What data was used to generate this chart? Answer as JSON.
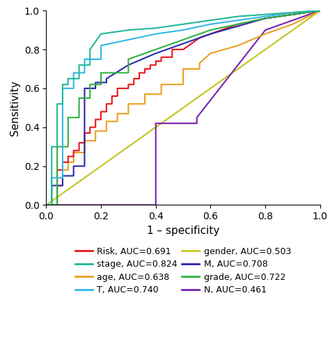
{
  "title": "",
  "xlabel": "1 – specificity",
  "ylabel": "Sensitivity",
  "xlim": [
    0.0,
    1.0
  ],
  "ylim": [
    0.0,
    1.0
  ],
  "diagonal_color": "#555555",
  "curves": {
    "Risk": {
      "color": "#e8151a",
      "auc": 0.691,
      "fpr": [
        0.0,
        0.04,
        0.04,
        0.06,
        0.06,
        0.08,
        0.08,
        0.1,
        0.1,
        0.12,
        0.12,
        0.14,
        0.14,
        0.16,
        0.16,
        0.18,
        0.18,
        0.2,
        0.2,
        0.22,
        0.22,
        0.24,
        0.24,
        0.26,
        0.26,
        0.3,
        0.3,
        0.32,
        0.32,
        0.34,
        0.34,
        0.36,
        0.36,
        0.38,
        0.38,
        0.4,
        0.4,
        0.42,
        0.42,
        0.46,
        0.46,
        0.5,
        0.52,
        0.54,
        0.56,
        0.6,
        0.7,
        0.8,
        0.9,
        1.0
      ],
      "tpr": [
        0.0,
        0.0,
        0.18,
        0.18,
        0.22,
        0.22,
        0.25,
        0.25,
        0.28,
        0.28,
        0.32,
        0.32,
        0.37,
        0.37,
        0.4,
        0.4,
        0.44,
        0.44,
        0.48,
        0.48,
        0.52,
        0.52,
        0.56,
        0.56,
        0.6,
        0.6,
        0.62,
        0.62,
        0.65,
        0.65,
        0.68,
        0.68,
        0.7,
        0.7,
        0.72,
        0.72,
        0.74,
        0.74,
        0.76,
        0.76,
        0.8,
        0.8,
        0.82,
        0.84,
        0.86,
        0.88,
        0.93,
        0.96,
        0.98,
        1.0
      ]
    },
    "age": {
      "color": "#e8a020",
      "auc": 0.638,
      "fpr": [
        0.0,
        0.04,
        0.04,
        0.06,
        0.06,
        0.08,
        0.08,
        0.1,
        0.1,
        0.14,
        0.14,
        0.18,
        0.18,
        0.22,
        0.22,
        0.26,
        0.26,
        0.3,
        0.3,
        0.36,
        0.36,
        0.42,
        0.42,
        0.5,
        0.5,
        0.56,
        0.56,
        0.6,
        0.65,
        0.7,
        0.8,
        0.9,
        1.0
      ],
      "tpr": [
        0.0,
        0.0,
        0.1,
        0.1,
        0.18,
        0.18,
        0.22,
        0.22,
        0.27,
        0.27,
        0.33,
        0.33,
        0.38,
        0.38,
        0.43,
        0.43,
        0.47,
        0.47,
        0.52,
        0.52,
        0.57,
        0.57,
        0.62,
        0.62,
        0.7,
        0.7,
        0.73,
        0.78,
        0.8,
        0.82,
        0.88,
        0.93,
        1.0
      ]
    },
    "gender": {
      "color": "#c8c820",
      "auc": 0.503,
      "fpr": [
        0.0,
        1.0
      ],
      "tpr": [
        0.0,
        1.0
      ]
    },
    "grade": {
      "color": "#30b040",
      "auc": 0.722,
      "fpr": [
        0.0,
        0.04,
        0.04,
        0.08,
        0.08,
        0.12,
        0.12,
        0.16,
        0.16,
        0.2,
        0.2,
        0.3,
        0.3,
        0.4,
        0.5,
        0.6,
        0.7,
        0.8,
        0.9,
        1.0
      ],
      "tpr": [
        0.0,
        0.0,
        0.3,
        0.3,
        0.45,
        0.45,
        0.55,
        0.55,
        0.62,
        0.62,
        0.68,
        0.68,
        0.75,
        0.8,
        0.85,
        0.9,
        0.93,
        0.96,
        0.98,
        1.0
      ]
    },
    "stage": {
      "color": "#20b898",
      "auc": 0.824,
      "fpr": [
        0.0,
        0.02,
        0.02,
        0.04,
        0.04,
        0.06,
        0.06,
        0.08,
        0.08,
        0.12,
        0.12,
        0.16,
        0.16,
        0.2,
        0.3,
        0.4,
        0.5,
        0.6,
        0.7,
        0.8,
        0.9,
        1.0
      ],
      "tpr": [
        0.0,
        0.0,
        0.3,
        0.3,
        0.52,
        0.52,
        0.62,
        0.62,
        0.65,
        0.65,
        0.72,
        0.72,
        0.8,
        0.88,
        0.9,
        0.91,
        0.93,
        0.95,
        0.97,
        0.98,
        0.99,
        1.0
      ]
    },
    "T": {
      "color": "#30b8e8",
      "auc": 0.74,
      "fpr": [
        0.0,
        0.02,
        0.02,
        0.06,
        0.06,
        0.1,
        0.1,
        0.14,
        0.14,
        0.2,
        0.2,
        0.3,
        0.4,
        0.5,
        0.6,
        0.7,
        0.8,
        0.9,
        1.0
      ],
      "tpr": [
        0.0,
        0.0,
        0.14,
        0.14,
        0.6,
        0.6,
        0.68,
        0.68,
        0.75,
        0.75,
        0.82,
        0.85,
        0.88,
        0.9,
        0.93,
        0.95,
        0.97,
        0.99,
        1.0
      ]
    },
    "M": {
      "color": "#2828a8",
      "auc": 0.708,
      "fpr": [
        0.0,
        0.02,
        0.02,
        0.06,
        0.06,
        0.1,
        0.1,
        0.14,
        0.14,
        0.18,
        0.18,
        0.22,
        0.22,
        0.3,
        0.4,
        0.5,
        0.6,
        0.7,
        0.8,
        0.9,
        1.0
      ],
      "tpr": [
        0.0,
        0.0,
        0.1,
        0.1,
        0.15,
        0.15,
        0.2,
        0.2,
        0.6,
        0.6,
        0.63,
        0.63,
        0.65,
        0.72,
        0.78,
        0.83,
        0.88,
        0.92,
        0.96,
        0.98,
        1.0
      ]
    },
    "N": {
      "color": "#7820b0",
      "auc": 0.461,
      "fpr": [
        0.0,
        0.4,
        0.4,
        0.55,
        0.55,
        0.8,
        1.0
      ],
      "tpr": [
        0.0,
        0.0,
        0.42,
        0.42,
        0.45,
        0.9,
        1.0
      ]
    }
  },
  "legend_left": [
    "Risk",
    "age",
    "gender",
    "grade"
  ],
  "legend_right": [
    "stage",
    "T",
    "M",
    "N"
  ],
  "legend_auc_labels": {
    "Risk": "Risk, AUC=0.691",
    "age": "age, AUC=0.638",
    "gender": "gender, AUC=0.503",
    "grade": "grade, AUC=0.722",
    "stage": "stage, AUC=0.824",
    "T": "T, AUC=0.740",
    "M": "M, AUC=0.708",
    "N": "N, AUC=0.461"
  },
  "background_color": "#ffffff",
  "tick_fontsize": 10,
  "label_fontsize": 11
}
